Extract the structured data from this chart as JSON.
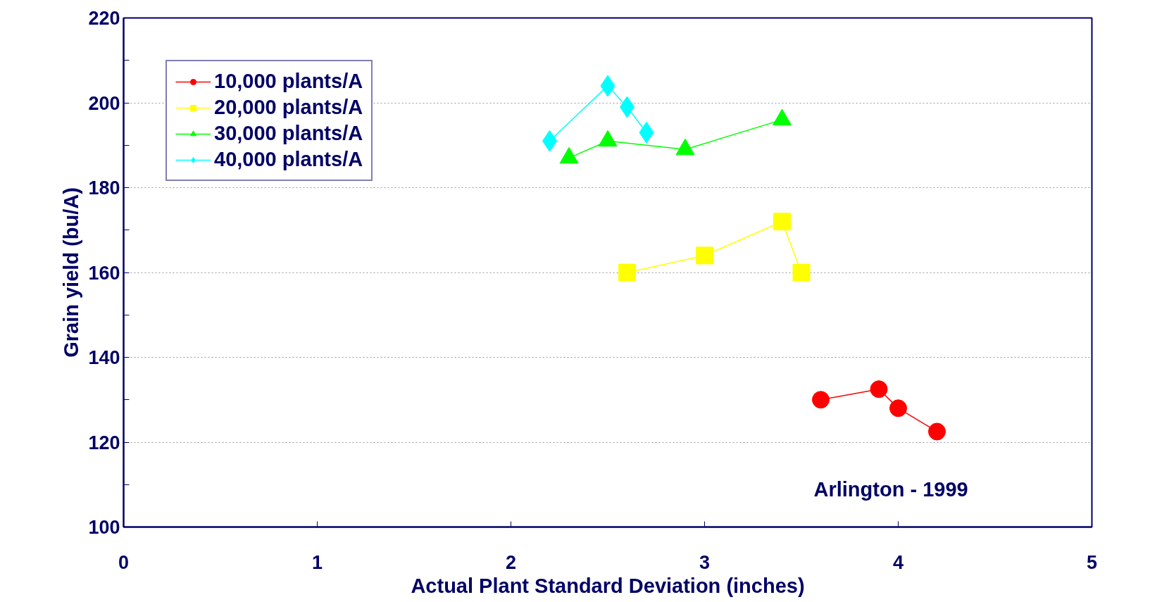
{
  "chart_data": {
    "type": "line",
    "xlabel": "Actual Plant Standard Deviation (inches)",
    "ylabel": "Grain yield (bu/A)",
    "annotations": [
      "Arlington - 1999"
    ],
    "xlim": [
      0,
      5
    ],
    "xticks": [
      0,
      1,
      2,
      3,
      4,
      5
    ],
    "ylim": [
      100,
      220
    ],
    "yticks": [
      100,
      120,
      140,
      160,
      180,
      200,
      220
    ],
    "grid": "y",
    "legend": "top left",
    "series": [
      {
        "name": "10,000 plants/A",
        "color": "#ff0000",
        "marker": "circle",
        "x": [
          3.6,
          3.9,
          4.0,
          4.2
        ],
        "values": [
          130,
          132.5,
          128,
          122.5
        ]
      },
      {
        "name": "20,000 plants/A",
        "color": "#ffff00",
        "marker": "square",
        "x": [
          2.6,
          3.0,
          3.4,
          3.5
        ],
        "values": [
          160,
          164,
          172,
          160
        ]
      },
      {
        "name": "30,000 plants/A",
        "color": "#00ff00",
        "marker": "triangle",
        "x": [
          2.3,
          2.5,
          2.9,
          3.4
        ],
        "values": [
          187,
          191,
          189,
          196
        ]
      },
      {
        "name": "40,000 plants/A",
        "color": "#00ffff",
        "marker": "diamond",
        "x": [
          2.2,
          2.5,
          2.6,
          2.7
        ],
        "values": [
          191,
          204,
          199,
          193
        ]
      }
    ]
  }
}
